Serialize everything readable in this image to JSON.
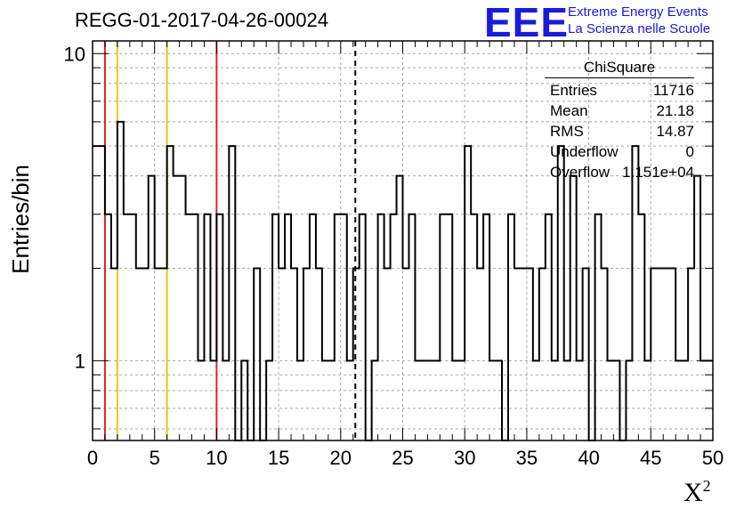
{
  "page": {
    "title": "REGG-01-2017-04-26-00024",
    "logo": {
      "mark": "EEE",
      "line1": "Extreme Energy Events",
      "line2": "La Scienza nelle Scuole"
    }
  },
  "stats": {
    "name": "ChiSquare",
    "rows": [
      {
        "label": "Entries",
        "value": "11716"
      },
      {
        "label": "Mean",
        "value": "21.18"
      },
      {
        "label": "RMS",
        "value": "14.87"
      },
      {
        "label": "Underflow",
        "value": "0"
      },
      {
        "label": "Overflow",
        "value": "1.151e+04"
      }
    ]
  },
  "colors": {
    "histogram": "#000000",
    "red_line": "#e0241f",
    "yellow_line": "#f2c21b",
    "grid": "#a8a8a8",
    "logo": "#1a1adf"
  },
  "chart_data": {
    "type": "histogram",
    "title": "REGG-01-2017-04-26-00024",
    "xlabel": "X",
    "xlabel_superscript": "2",
    "ylabel": "Entries/bin",
    "xlim": [
      0,
      50
    ],
    "ylim": [
      0.55,
      11
    ],
    "yscale": "log",
    "bin_width": 0.5,
    "grid": true,
    "x_ticks": [
      "0",
      "5",
      "10",
      "15",
      "20",
      "25",
      "30",
      "35",
      "40",
      "45",
      "50"
    ],
    "y_ticks": [
      "1",
      "10"
    ],
    "bin_counts": [
      5,
      5,
      3,
      2,
      6,
      3,
      3,
      2,
      2,
      4,
      2,
      2,
      5,
      4,
      4,
      3,
      3,
      1,
      3,
      1,
      3,
      1,
      5,
      0,
      1,
      0,
      2,
      0,
      1,
      3,
      2,
      3,
      2,
      1,
      2,
      3,
      2,
      1,
      1,
      3,
      3,
      1,
      2,
      3,
      0,
      1,
      3,
      2,
      3,
      4,
      2,
      3,
      1,
      1,
      1,
      1,
      3,
      3,
      1,
      1,
      5,
      3,
      2,
      3,
      1,
      1,
      0,
      3,
      2,
      2,
      2,
      1,
      2,
      3,
      1,
      5,
      1,
      4,
      1,
      2,
      0,
      3,
      2,
      1,
      1,
      0,
      1,
      5,
      3,
      1,
      2,
      2,
      2,
      2,
      1,
      1,
      2,
      4,
      1,
      1
    ],
    "vertical_lines": [
      {
        "x": 1,
        "color": "red",
        "style": "solid"
      },
      {
        "x": 2,
        "color": "yellow",
        "style": "solid"
      },
      {
        "x": 6,
        "color": "yellow",
        "style": "solid"
      },
      {
        "x": 10,
        "color": "red",
        "style": "solid"
      },
      {
        "x": 21.18,
        "color": "black",
        "style": "dashed"
      }
    ]
  }
}
